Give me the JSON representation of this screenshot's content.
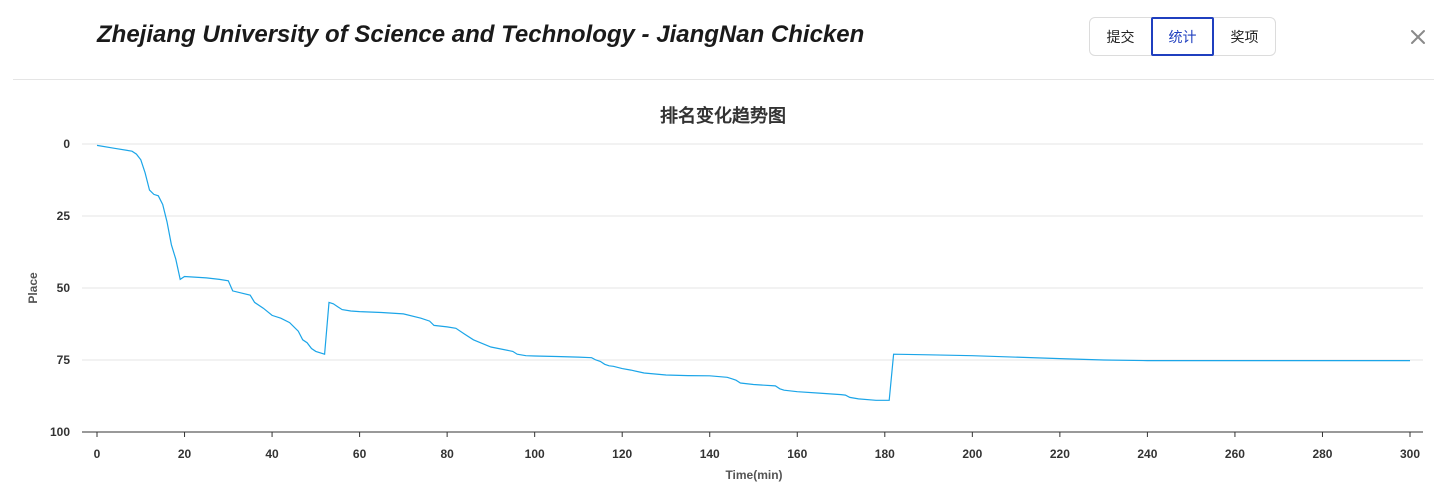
{
  "header": {
    "team_title": "Zhejiang University of Science and Technology - JiangNan Chicken",
    "tabs": [
      {
        "label": "提交",
        "active": false
      },
      {
        "label": "统计",
        "active": true
      },
      {
        "label": "奖项",
        "active": false
      }
    ],
    "close_icon": "close-icon"
  },
  "colors": {
    "line": "#1ba5e8",
    "active_tab": "#1f3fbf",
    "grid": "#e6e6e6"
  },
  "chart_data": {
    "type": "line",
    "title": "排名变化趋势图",
    "xlabel": "Time(min)",
    "ylabel": "Place",
    "xlim": [
      0,
      300
    ],
    "ylim": [
      0,
      100
    ],
    "y_inverted": true,
    "x_ticks": [
      0,
      20,
      40,
      60,
      80,
      100,
      120,
      140,
      160,
      180,
      200,
      220,
      240,
      260,
      280,
      300
    ],
    "y_ticks": [
      0,
      25,
      50,
      75,
      100
    ],
    "grid": true,
    "series": [
      {
        "x": [
          0,
          4,
          8,
          9,
          10,
          11,
          12,
          13,
          14,
          15,
          16,
          17,
          18,
          19,
          20,
          25,
          28,
          30,
          31,
          35,
          36,
          38,
          40,
          42,
          44,
          46,
          47,
          48,
          49,
          50,
          52,
          53,
          54,
          55,
          56,
          58,
          60,
          65,
          70,
          74,
          76,
          77,
          80,
          82,
          84,
          86,
          90,
          95,
          96,
          98,
          100,
          105,
          110,
          113,
          114,
          115,
          116,
          117,
          118,
          120,
          122,
          125,
          130,
          135,
          140,
          144,
          145,
          146,
          147,
          150,
          155,
          156,
          157,
          160,
          165,
          170,
          171,
          172,
          174,
          178,
          181,
          182,
          190,
          200,
          220,
          230,
          240,
          260,
          280,
          300
        ],
        "y": [
          0.5,
          1.5,
          2.5,
          3.5,
          5.5,
          10,
          16,
          17.5,
          18,
          21,
          27,
          35,
          40,
          47,
          46,
          46.5,
          47,
          47.5,
          51,
          52.5,
          55,
          57,
          59.5,
          60.5,
          62,
          65,
          68,
          69,
          71,
          72,
          73,
          55,
          55.5,
          56.5,
          57.5,
          58,
          58.2,
          58.5,
          59,
          60.5,
          61.5,
          63,
          63.5,
          64,
          66,
          68,
          70.5,
          72,
          73,
          73.5,
          73.6,
          73.8,
          74,
          74.2,
          75,
          75.5,
          76.5,
          77,
          77.2,
          78,
          78.5,
          79.5,
          80.2,
          80.4,
          80.5,
          81,
          81.5,
          82,
          83,
          83.5,
          84,
          85,
          85.5,
          86,
          86.5,
          87,
          87.2,
          88,
          88.5,
          89,
          89,
          73,
          73.2,
          73.5,
          74.5,
          75,
          75.2,
          75.2,
          75.2,
          75.2
        ]
      }
    ]
  }
}
